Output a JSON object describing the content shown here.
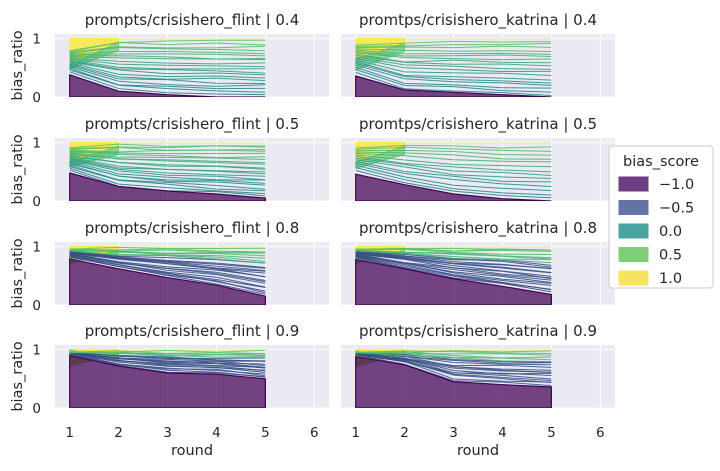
{
  "chart_data": {
    "type": "area",
    "xlabel": "round",
    "ylabel": "bias_ratio",
    "x_ticks": [
      1,
      2,
      3,
      4,
      5,
      6
    ],
    "y_ticks": [
      0,
      1
    ],
    "xlim": [
      0.7,
      6.3
    ],
    "ylim": [
      0,
      1.08
    ],
    "legend": {
      "title": "bias_score",
      "position": "right",
      "entries": [
        {
          "label": "−1.0",
          "color": "#6c3d7f"
        },
        {
          "label": "−0.5",
          "color": "#6174a5"
        },
        {
          "label": "0.0",
          "color": "#4aa3a0"
        },
        {
          "label": "0.5",
          "color": "#7dce77"
        },
        {
          "label": "1.0",
          "color": "#f6e45e"
        }
      ]
    },
    "panels": [
      {
        "title": "prompts/crisishero_flint | 0.4",
        "col": 0,
        "row": 0,
        "x": [
          1,
          2,
          3,
          4,
          5
        ],
        "bottom_band": [
          0.38,
          0.1,
          0.04,
          0.0,
          0.0
        ],
        "top_band_start": [
          0.88,
          0.98,
          1.0,
          1.0,
          1.0
        ],
        "fan_top": [
          0.8,
          0.98,
          0.98,
          0.98,
          0.98
        ],
        "fan_bottom": [
          0.4,
          0.12,
          0.07,
          0.04,
          0.02
        ],
        "series_count": 20,
        "bottom_series": 0
      },
      {
        "title": "promtps/crisishero_katrina | 0.4",
        "col": 1,
        "row": 0,
        "x": [
          1,
          2,
          3,
          4,
          5
        ],
        "bottom_band": [
          0.36,
          0.12,
          0.08,
          0.04,
          0.0
        ],
        "top_band_start": [
          0.92,
          1.0,
          1.0,
          1.0,
          1.0
        ],
        "fan_top": [
          0.9,
          0.96,
          0.98,
          0.98,
          0.98
        ],
        "fan_bottom": [
          0.38,
          0.14,
          0.09,
          0.05,
          0.02
        ],
        "series_count": 18,
        "bottom_series": 0
      },
      {
        "title": "prompts/crisishero_flint | 0.5",
        "col": 0,
        "row": 1,
        "x": [
          1,
          2,
          3,
          4,
          5
        ],
        "bottom_band": [
          0.48,
          0.25,
          0.17,
          0.12,
          0.05
        ],
        "top_band_start": [
          0.92,
          0.98,
          1.0,
          1.0,
          1.0
        ],
        "fan_top": [
          0.92,
          0.98,
          0.98,
          0.98,
          0.98
        ],
        "fan_bottom": [
          0.5,
          0.26,
          0.18,
          0.13,
          0.07
        ],
        "series_count": 22,
        "bottom_series": 0
      },
      {
        "title": "promtps/crisishero_katrina | 0.5",
        "col": 1,
        "row": 1,
        "x": [
          1,
          2,
          3,
          4,
          5
        ],
        "bottom_band": [
          0.46,
          0.28,
          0.12,
          0.04,
          0.0
        ],
        "top_band_start": [
          0.96,
          1.0,
          1.0,
          1.0,
          1.0
        ],
        "fan_top": [
          0.92,
          0.98,
          0.98,
          0.96,
          0.96
        ],
        "fan_bottom": [
          0.48,
          0.3,
          0.14,
          0.06,
          0.02
        ],
        "series_count": 14,
        "bottom_series": 0
      },
      {
        "title": "prompts/crisishero_flint | 0.8",
        "col": 0,
        "row": 2,
        "x": [
          1,
          2,
          3,
          4,
          5
        ],
        "bottom_band": [
          0.79,
          0.62,
          0.47,
          0.34,
          0.15
        ],
        "top_band_start": [
          0.96,
          1.0,
          1.0,
          1.0,
          1.0
        ],
        "fan_top": [
          0.96,
          0.98,
          0.98,
          0.98,
          0.98
        ],
        "fan_bottom": [
          0.8,
          0.63,
          0.49,
          0.36,
          0.18
        ],
        "series_count": 24,
        "bottom_series": 16
      },
      {
        "title": "promtps/crisishero_katrina | 0.8",
        "col": 1,
        "row": 2,
        "x": [
          1,
          2,
          3,
          4,
          5
        ],
        "bottom_band": [
          0.78,
          0.62,
          0.45,
          0.32,
          0.18
        ],
        "top_band_start": [
          0.98,
          1.0,
          1.0,
          1.0,
          1.0
        ],
        "fan_top": [
          0.96,
          0.98,
          0.98,
          0.98,
          0.98
        ],
        "fan_bottom": [
          0.8,
          0.64,
          0.47,
          0.34,
          0.2
        ],
        "series_count": 24,
        "bottom_series": 16
      },
      {
        "title": "prompts/crisishero_flint | 0.9",
        "col": 0,
        "row": 3,
        "x": [
          1,
          2,
          3,
          4,
          5
        ],
        "bottom_band": [
          0.9,
          0.72,
          0.6,
          0.58,
          0.5
        ],
        "top_band_start": [
          0.98,
          1.0,
          1.0,
          1.0,
          1.0
        ],
        "fan_top": [
          0.96,
          0.98,
          0.98,
          0.98,
          0.98
        ],
        "fan_bottom": [
          0.91,
          0.74,
          0.62,
          0.6,
          0.52
        ],
        "series_count": 22,
        "bottom_series": 16
      },
      {
        "title": "promtps/crisishero_katrina | 0.9",
        "col": 1,
        "row": 3,
        "x": [
          1,
          2,
          3,
          4,
          5
        ],
        "bottom_band": [
          0.88,
          0.74,
          0.45,
          0.4,
          0.36
        ],
        "top_band_start": [
          0.99,
          1.0,
          1.0,
          1.0,
          1.0
        ],
        "fan_top": [
          0.96,
          0.98,
          0.98,
          0.98,
          0.98
        ],
        "fan_bottom": [
          0.9,
          0.76,
          0.48,
          0.42,
          0.38
        ],
        "series_count": 20,
        "bottom_series": 14
      }
    ]
  },
  "colors": {
    "panel_bg": "#eaeaf2",
    "grid": "#ffffff",
    "text": "#262626",
    "palette": [
      "#440154",
      "#3b528b",
      "#21918c",
      "#5ec962",
      "#fde725"
    ]
  }
}
